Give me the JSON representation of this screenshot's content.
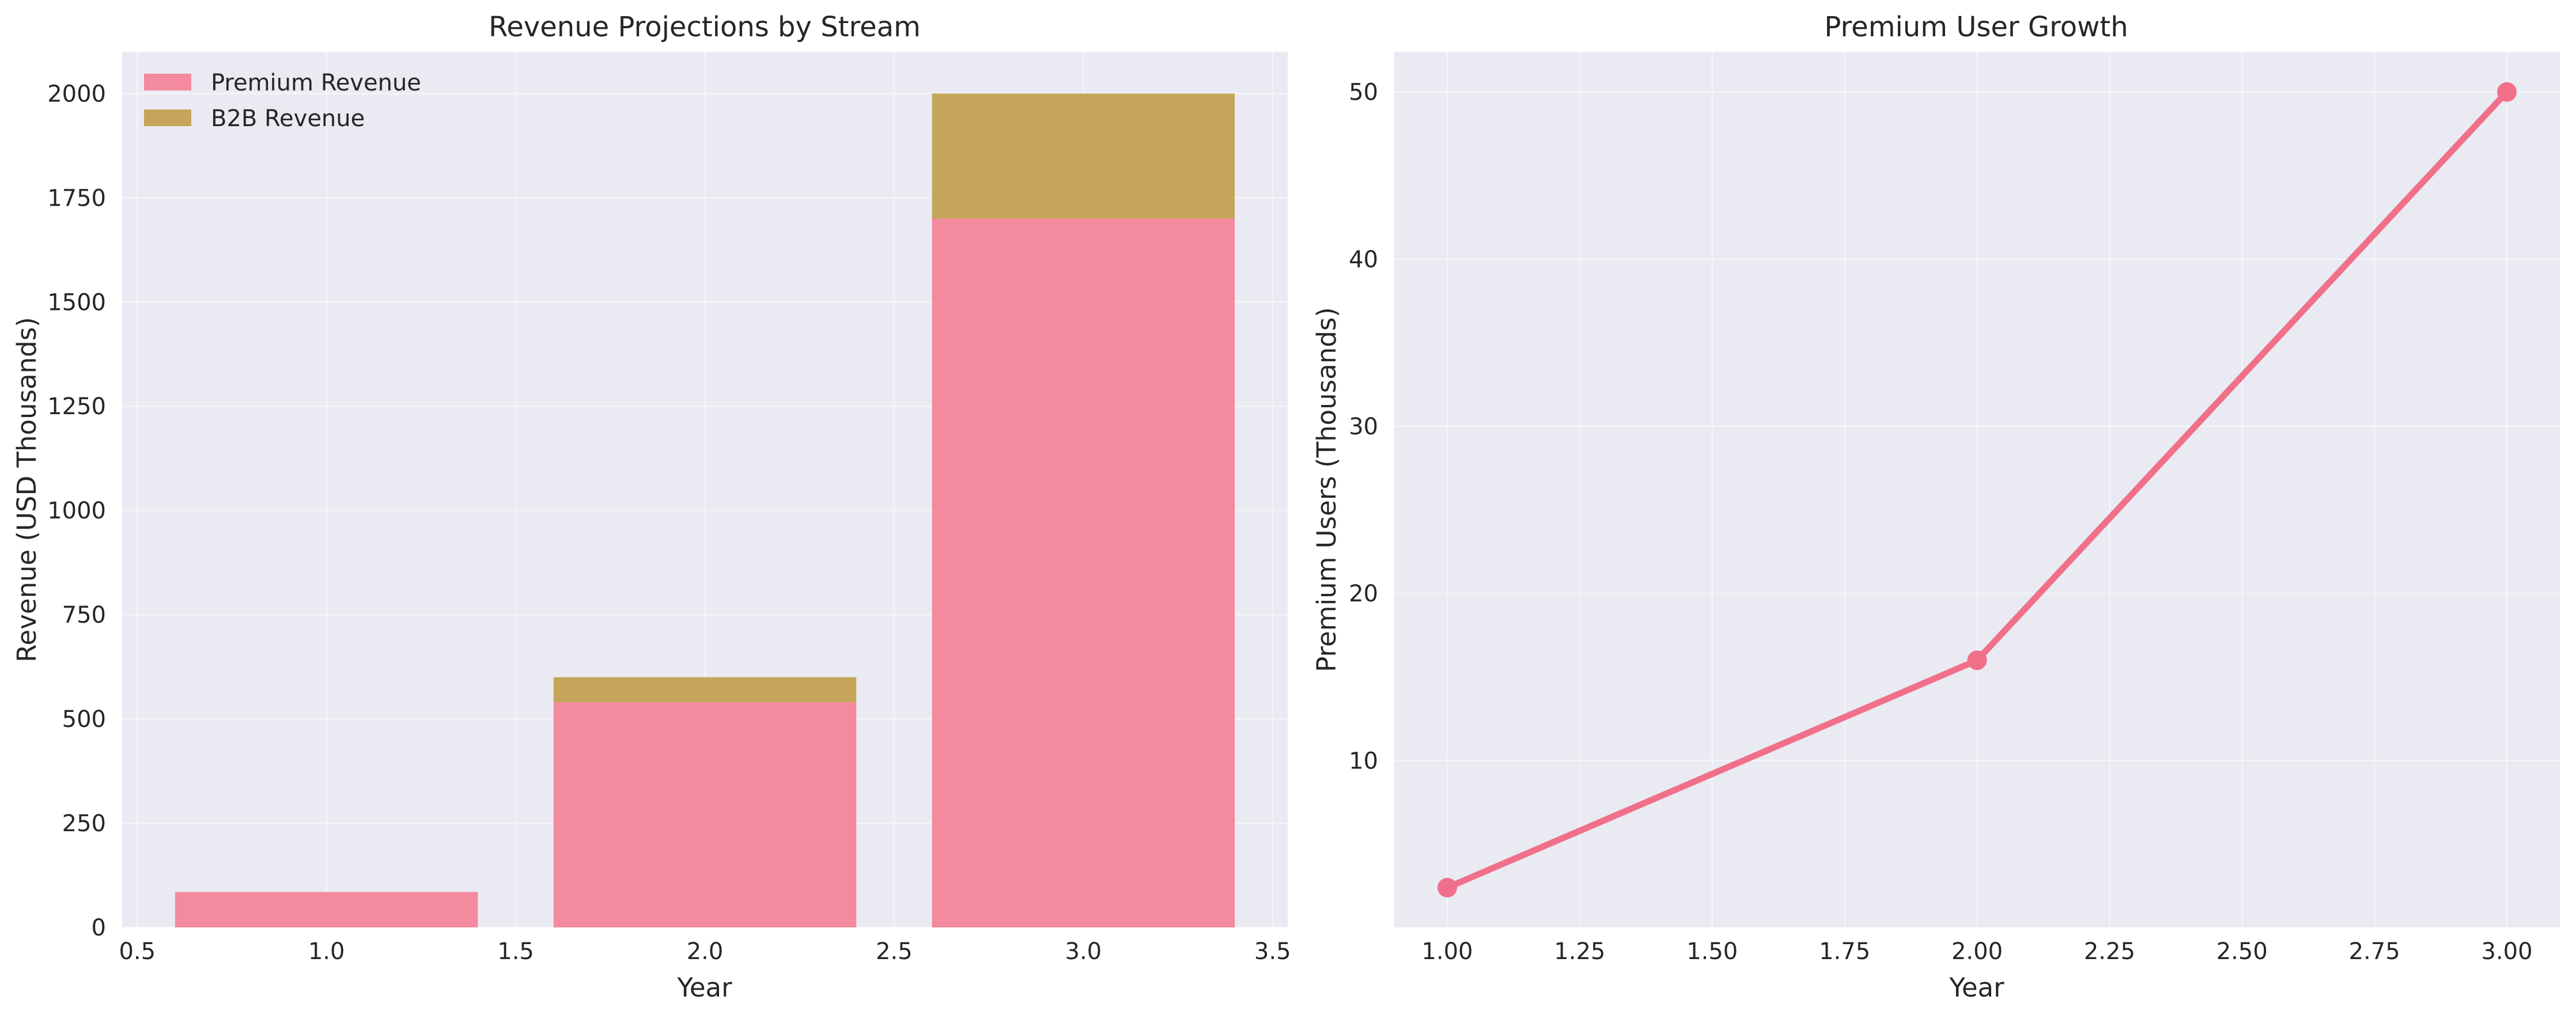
{
  "chart_data": [
    {
      "type": "bar",
      "stacked": true,
      "title": "Revenue Projections by Stream",
      "xlabel": "Year",
      "ylabel": "Revenue (USD Thousands)",
      "x": [
        1,
        2,
        3
      ],
      "series": [
        {
          "name": "Premium Revenue",
          "values": [
            85,
            540,
            1700
          ],
          "color": "#f38a9e"
        },
        {
          "name": "B2B Revenue",
          "values": [
            0,
            60,
            300
          ],
          "color": "#c4a55a"
        }
      ],
      "bar_width": 0.8,
      "xlim": [
        0.46,
        3.54
      ],
      "ylim": [
        0,
        2100
      ],
      "xticks": [
        0.5,
        1.0,
        1.5,
        2.0,
        2.5,
        3.0,
        3.5
      ],
      "xtick_labels": [
        "0.5",
        "1.0",
        "1.5",
        "2.0",
        "2.5",
        "3.0",
        "3.5"
      ],
      "yticks": [
        0,
        250,
        500,
        750,
        1000,
        1250,
        1500,
        1750,
        2000
      ],
      "ytick_labels": [
        "0",
        "250",
        "500",
        "750",
        "1000",
        "1250",
        "1500",
        "1750",
        "2000"
      ],
      "grid": true,
      "legend_position": "upper left"
    },
    {
      "type": "line",
      "title": "Premium User Growth",
      "xlabel": "Year",
      "ylabel": "Premium Users (Thousands)",
      "x": [
        1,
        2,
        3
      ],
      "series": [
        {
          "values": [
            2.4,
            16,
            50
          ],
          "color": "#f0708a",
          "marker": "circle"
        }
      ],
      "xlim": [
        0.9,
        3.1
      ],
      "ylim": [
        0.02,
        52.4
      ],
      "xticks": [
        1.0,
        1.25,
        1.5,
        1.75,
        2.0,
        2.25,
        2.5,
        2.75,
        3.0
      ],
      "xtick_labels": [
        "1.00",
        "1.25",
        "1.50",
        "1.75",
        "2.00",
        "2.25",
        "2.50",
        "2.75",
        "3.00"
      ],
      "yticks": [
        10,
        20,
        30,
        40,
        50
      ],
      "ytick_labels": [
        "10",
        "20",
        "30",
        "40",
        "50"
      ],
      "grid": true
    }
  ]
}
